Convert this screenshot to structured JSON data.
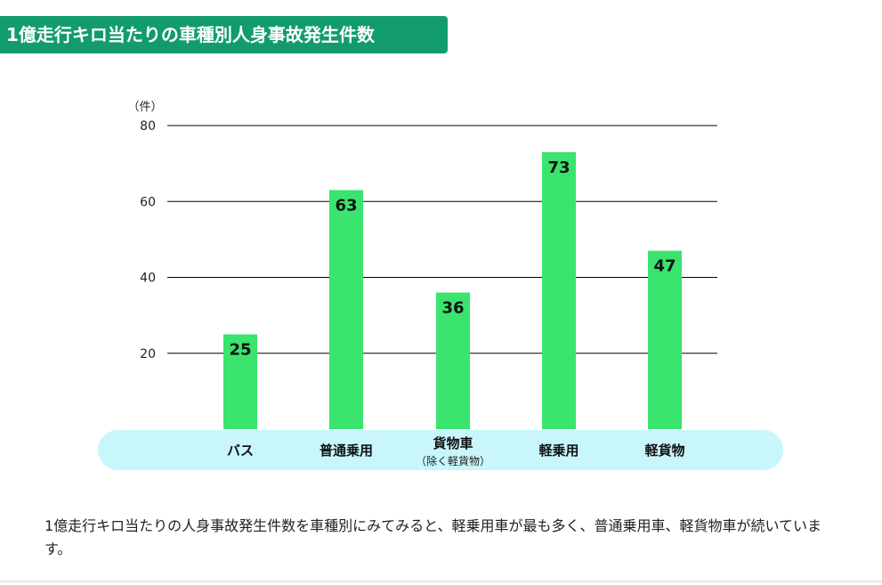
{
  "page": {
    "title": "1億走行キロ当たりの車種別人身事故発生件数",
    "caption": "1億走行キロ当たりの人身事故発生件数を車種別にみてみると、軽乗用車が最も多く、普通乗用車、軽貨物車が続いています。"
  },
  "colors": {
    "banner": "#129c6c",
    "bar": "#3ae46e",
    "category_band": "#c8f6fb",
    "gridline": "#000000"
  },
  "chart_data": {
    "type": "bar",
    "title": "1億走行キロ当たりの車種別人身事故発生件数",
    "ylabel": "（件）",
    "xlabel": "",
    "ylim": [
      0,
      80
    ],
    "yticks": [
      20,
      40,
      60,
      80
    ],
    "grid": true,
    "categories": [
      {
        "label": "バス",
        "sublabel": ""
      },
      {
        "label": "普通乗用",
        "sublabel": ""
      },
      {
        "label": "貨物車",
        "sublabel": "（除く軽貨物）"
      },
      {
        "label": "軽乗用",
        "sublabel": ""
      },
      {
        "label": "軽貨物",
        "sublabel": ""
      }
    ],
    "values": [
      25,
      63,
      36,
      73,
      47
    ]
  }
}
